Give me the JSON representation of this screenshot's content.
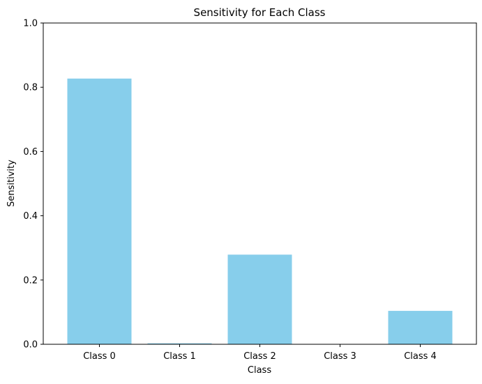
{
  "chart_data": {
    "type": "bar",
    "title": "Sensitivity for Each Class",
    "xlabel": "Class",
    "ylabel": "Sensitivity",
    "categories": [
      "Class 0",
      "Class 1",
      "Class 2",
      "Class 3",
      "Class 4"
    ],
    "values": [
      0.827,
      0.003,
      0.279,
      0.0,
      0.104
    ],
    "ylim": [
      0,
      1
    ],
    "yticks": [
      "0.0",
      "0.2",
      "0.4",
      "0.6",
      "0.8",
      "1.0"
    ],
    "grid": false,
    "bar_color": "#87ceeb"
  }
}
